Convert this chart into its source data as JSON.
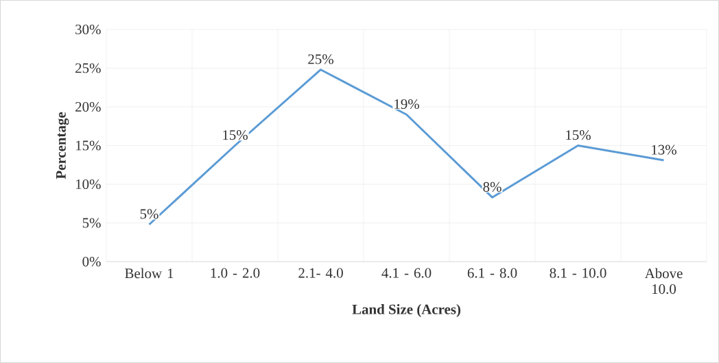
{
  "chart_data": {
    "type": "line",
    "xlabel": "Land Size (Acres)",
    "ylabel": "Percentage",
    "categories": [
      "Below 1",
      "1.0 - 2.0",
      "2.1- 4.0",
      "4.1 - 6.0",
      "6.1 - 8.0",
      "8.1 - 10.0",
      "Above 10.0"
    ],
    "values": [
      4.8,
      15,
      24.8,
      19,
      8.3,
      15,
      13.1
    ],
    "value_labels": [
      "5%",
      "15%",
      "25%",
      "19%",
      "8%",
      "15%",
      "13%"
    ],
    "color": "#5b9bd5",
    "ylim": [
      0,
      30
    ],
    "yticks": [
      {
        "value": 0,
        "label": "0%"
      },
      {
        "value": 5,
        "label": "5%"
      },
      {
        "value": 10,
        "label": "10%"
      },
      {
        "value": 15,
        "label": "15%"
      },
      {
        "value": 20,
        "label": "20%"
      },
      {
        "value": 25,
        "label": "25%"
      },
      {
        "value": 30,
        "label": "30%"
      }
    ],
    "grid": true,
    "marker": "none",
    "line_style": "solid"
  }
}
